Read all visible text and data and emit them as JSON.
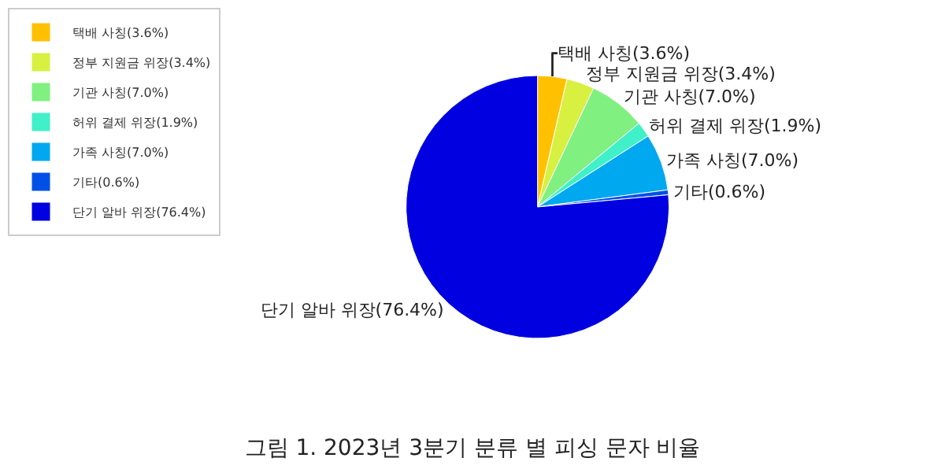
{
  "chart_data": {
    "type": "pie",
    "title": "그림 1. 2023년 3분기 분류 별 피싱 문자 비율",
    "categories": [
      "택배 사칭(3.6%)",
      "정부 지원금 위장(3.4%)",
      "기관 사칭(7.0%)",
      "허위 결제 위장(1.9%)",
      "가족 사칭(7.0%)",
      "기타(0.6%)",
      "단기 알바 위장(76.4%)"
    ],
    "values": [
      3.6,
      3.4,
      7.0,
      1.9,
      7.0,
      0.6,
      76.4
    ],
    "colors": [
      "#ffc000",
      "#d8f040",
      "#80f080",
      "#40f0c8",
      "#00a8f0",
      "#0050e8",
      "#0000e0"
    ],
    "legend": "top left"
  }
}
